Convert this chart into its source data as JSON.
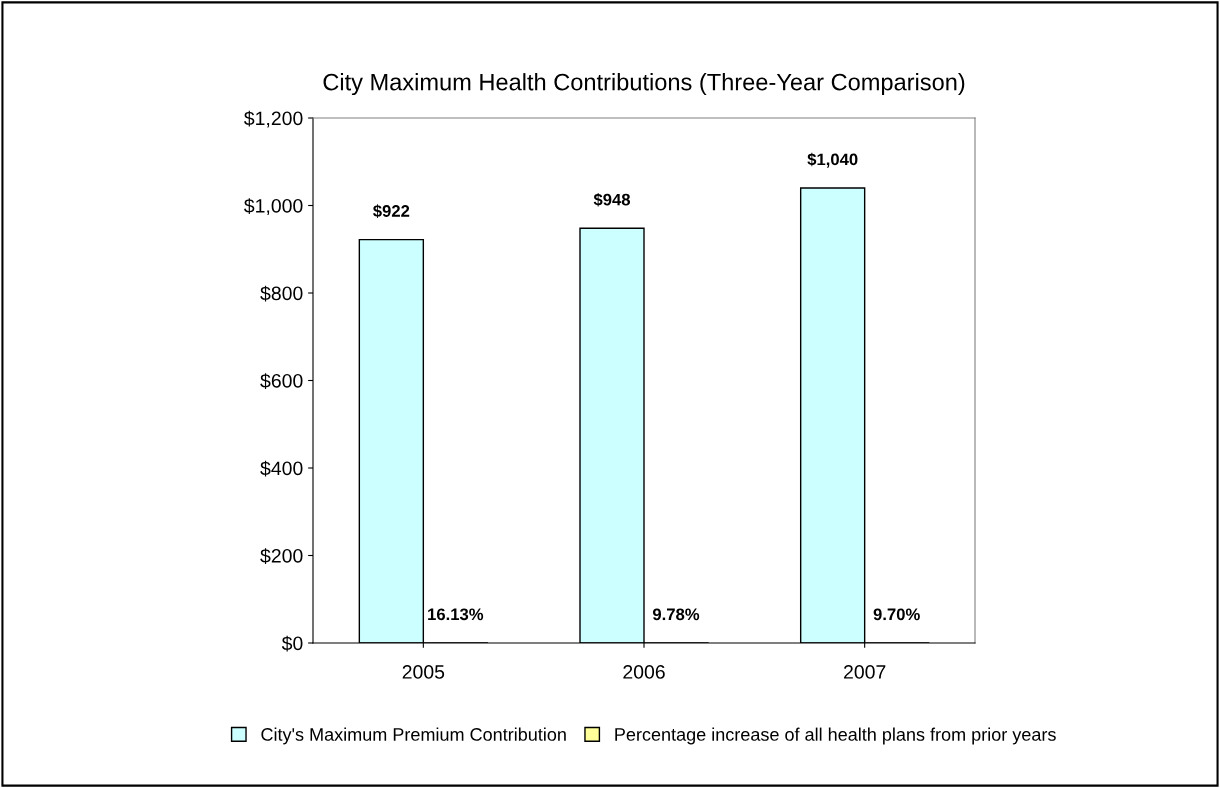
{
  "chart_data": {
    "type": "bar",
    "title": "City Maximum Health Contributions (Three-Year Comparison)",
    "categories": [
      "2005",
      "2006",
      "2007"
    ],
    "series": [
      {
        "name": "City's Maximum Premium Contribution",
        "color": "#ccffff",
        "values": [
          922,
          948,
          1040
        ],
        "value_labels": [
          "$922",
          "$948",
          "$1,040"
        ]
      },
      {
        "name": "Percentage increase of all health plans from prior years",
        "color": "#ffff99",
        "values": [
          0.1613,
          0.0978,
          0.097
        ],
        "value_labels": [
          "16.13%",
          "9.78%",
          "9.70%"
        ]
      }
    ],
    "ylim": [
      0,
      1200
    ],
    "yticks": [
      {
        "value": 0,
        "label": "$0"
      },
      {
        "value": 200,
        "label": "$200"
      },
      {
        "value": 400,
        "label": "$400"
      },
      {
        "value": 600,
        "label": "$600"
      },
      {
        "value": 800,
        "label": "$800"
      },
      {
        "value": 1000,
        "label": "$1,000"
      },
      {
        "value": 1200,
        "label": "$1,200"
      }
    ],
    "grid": false,
    "legend": "bottom"
  }
}
